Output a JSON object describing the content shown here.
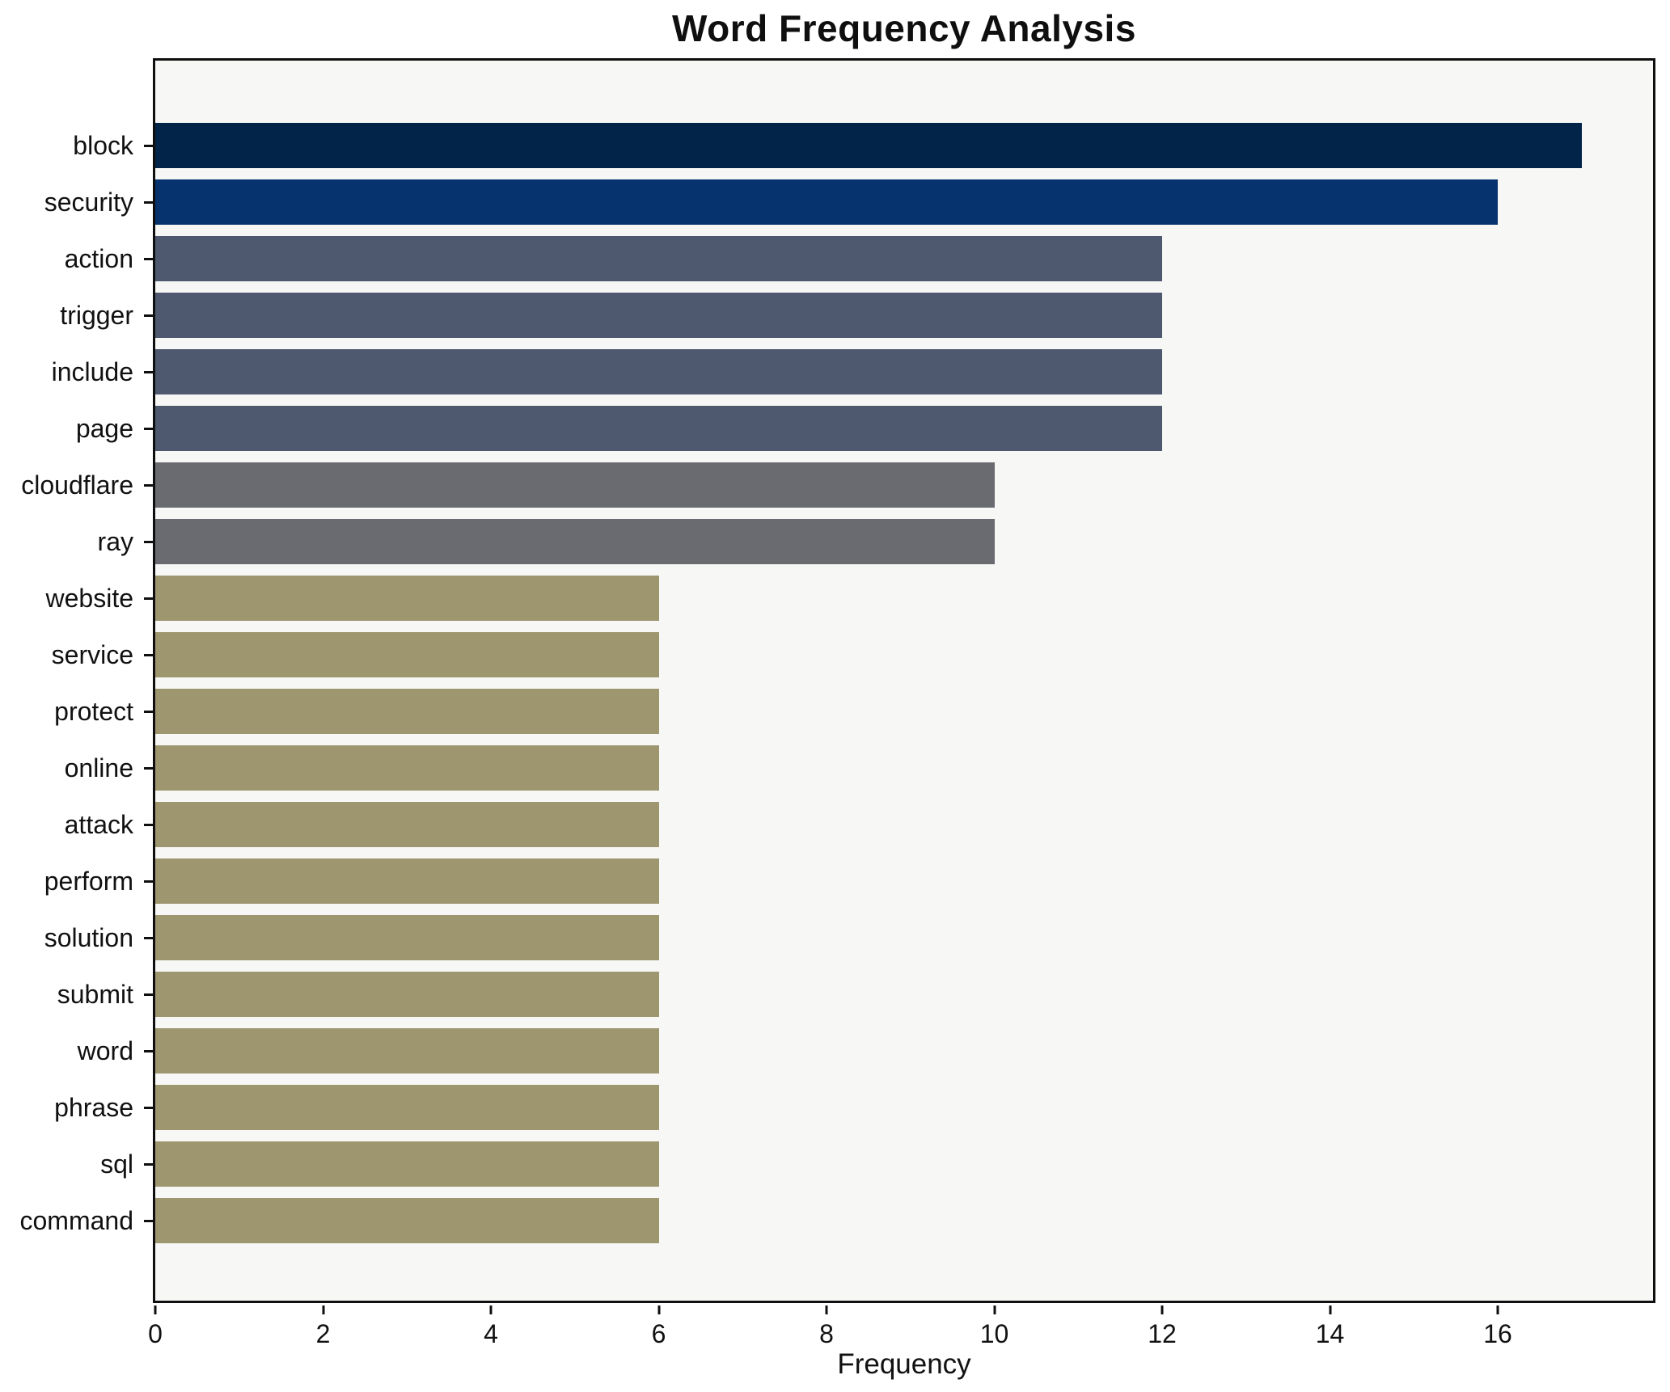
{
  "title": "Word Frequency Analysis",
  "chart_data": {
    "type": "bar",
    "orientation": "horizontal",
    "title": "Word Frequency Analysis",
    "xlabel": "Frequency",
    "ylabel": "",
    "categories": [
      "block",
      "security",
      "action",
      "trigger",
      "include",
      "page",
      "cloudflare",
      "ray",
      "website",
      "service",
      "protect",
      "online",
      "attack",
      "perform",
      "solution",
      "submit",
      "word",
      "phrase",
      "sql",
      "command"
    ],
    "values": [
      17,
      16,
      12,
      12,
      12,
      12,
      10,
      10,
      6,
      6,
      6,
      6,
      6,
      6,
      6,
      6,
      6,
      6,
      6,
      6
    ],
    "bar_colors": [
      "#032449",
      "#06326d",
      "#4e586f",
      "#4e586f",
      "#4e586f",
      "#4e586f",
      "#696b70",
      "#696b70",
      "#9e966f",
      "#9e966f",
      "#9e966f",
      "#9e966f",
      "#9e966f",
      "#9e966f",
      "#9e966f",
      "#9e966f",
      "#9e966f",
      "#9e966f",
      "#9e966f",
      "#9e966f"
    ],
    "xlim": [
      0,
      17.85
    ],
    "xticks": [
      0,
      2,
      4,
      6,
      8,
      10,
      12,
      14,
      16
    ],
    "grid": false,
    "legend": false,
    "value_labels": false,
    "plot_background": "#f7f7f6",
    "figure_background": "#ffffff",
    "axis_color": "#0f0f0f",
    "text_color": "#111111"
  }
}
